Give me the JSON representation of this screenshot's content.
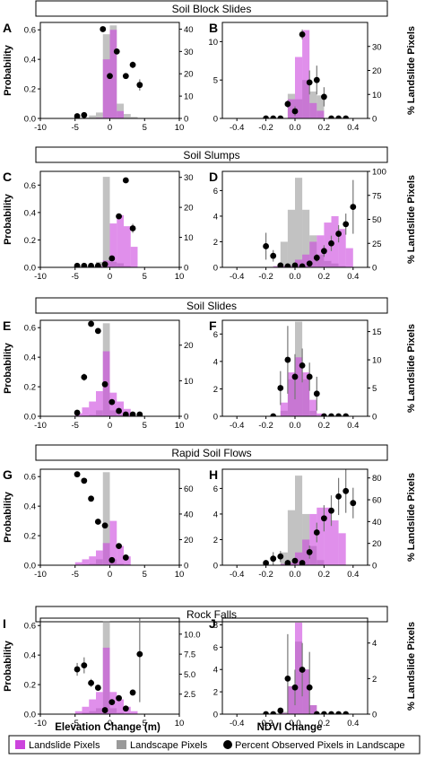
{
  "figure": {
    "left_ylabel": "Probability",
    "right_ylabel": "% Landslide Pixels",
    "xlabel_left": "Elevation Change (m)",
    "xlabel_right": "NDVI Change"
  },
  "colors": {
    "landslide": "#cc44dd",
    "landscape": "#9a9a9a",
    "point": "#000000",
    "errorbar": "#777777"
  },
  "legend": {
    "landslide_label": "Landslide Pixels",
    "landscape_label": "Landscape Pixels",
    "points_label": "Percent Observed Pixels in Landscape"
  },
  "rows": [
    {
      "title": "Soil Block Slides",
      "left_letter": "A",
      "right_letter": "B"
    },
    {
      "title": "Soil Slumps",
      "left_letter": "C",
      "right_letter": "D"
    },
    {
      "title": "Soil Slides",
      "left_letter": "E",
      "right_letter": "F"
    },
    {
      "title": "Rapid Soil Flows",
      "left_letter": "G",
      "right_letter": "H"
    },
    {
      "title": "Rock Falls",
      "left_letter": "I",
      "right_letter": "J"
    }
  ],
  "chart_data": [
    {
      "type": "bar",
      "panel": "A",
      "xlim": [
        -10,
        10
      ],
      "xticks": [
        -10,
        -5,
        0,
        5,
        10
      ],
      "ylim": [
        0,
        0.65
      ],
      "yticks": [
        0,
        0.2,
        0.4,
        0.6
      ],
      "y2lim": [
        0,
        43
      ],
      "y2ticks": [
        0,
        10,
        20,
        30,
        40
      ],
      "y2ticklabels": [
        "0",
        "10",
        "20",
        "30",
        "40"
      ],
      "bins": [
        [
          -4,
          -3,
          0,
          0.005
        ],
        [
          -3,
          -2,
          0,
          0.02
        ],
        [
          -2,
          -1,
          0.005,
          0.04
        ],
        [
          -1,
          0,
          0.4,
          0.57
        ],
        [
          0,
          1,
          0.6,
          0.63
        ],
        [
          1,
          2,
          0.05,
          0.1
        ],
        [
          2,
          3,
          0,
          0.03
        ],
        [
          3,
          4,
          0,
          0.01
        ]
      ],
      "points": [
        [
          -4.7,
          1,
          0
        ],
        [
          -3.7,
          1.5,
          0
        ],
        [
          -1,
          40,
          0
        ],
        [
          0,
          19,
          0
        ],
        [
          1,
          30,
          0
        ],
        [
          2.3,
          19,
          0
        ],
        [
          3.3,
          24,
          1.5
        ],
        [
          4.3,
          15,
          2.5
        ]
      ]
    },
    {
      "type": "bar",
      "panel": "B",
      "xlim": [
        -0.5,
        0.5
      ],
      "xticks": [
        -0.4,
        -0.2,
        0.0,
        0.2,
        0.4
      ],
      "ylim": [
        0,
        12.5
      ],
      "yticks": [
        0,
        5,
        10
      ],
      "y2lim": [
        0,
        40
      ],
      "y2ticks": [
        0,
        10,
        20,
        30
      ],
      "y2ticklabels": [
        "0",
        "10",
        "20",
        "30"
      ],
      "bins": [
        [
          -0.05,
          0,
          2.5,
          3.2
        ],
        [
          0,
          0.05,
          8,
          2.5
        ],
        [
          0.05,
          0.1,
          11.5,
          5
        ],
        [
          0.1,
          0.15,
          2,
          3.5
        ],
        [
          0.15,
          0.2,
          1,
          3
        ]
      ],
      "points": [
        [
          -0.2,
          0,
          0
        ],
        [
          -0.15,
          0,
          0
        ],
        [
          -0.1,
          0,
          0
        ],
        [
          -0.05,
          6,
          1.5
        ],
        [
          0,
          3,
          2
        ],
        [
          0.05,
          35,
          2
        ],
        [
          0.1,
          15,
          5
        ],
        [
          0.15,
          16,
          6
        ],
        [
          0.2,
          9,
          4
        ],
        [
          0.25,
          0,
          0
        ],
        [
          0.3,
          0,
          0
        ],
        [
          0.35,
          0,
          0
        ]
      ]
    },
    {
      "type": "bar",
      "panel": "C",
      "xlim": [
        -10,
        10
      ],
      "xticks": [
        -10,
        -5,
        0,
        5,
        10
      ],
      "ylim": [
        0,
        0.7
      ],
      "yticks": [
        0,
        0.2,
        0.4,
        0.6
      ],
      "y2lim": [
        0,
        32
      ],
      "y2ticks": [
        0,
        10,
        20,
        30
      ],
      "y2ticklabels": [
        "0",
        "10",
        "20",
        "30"
      ],
      "bins": [
        [
          -4,
          -3,
          0,
          0.005
        ],
        [
          -3,
          -2,
          0,
          0.01
        ],
        [
          -2,
          -1,
          0.01,
          0.04
        ],
        [
          -1,
          0,
          0.05,
          0.66
        ],
        [
          0,
          1,
          0.32,
          0.04
        ],
        [
          1,
          2,
          0.38,
          0.03
        ],
        [
          2,
          3,
          0.3,
          0.01
        ],
        [
          3,
          4,
          0.15,
          0
        ]
      ],
      "points": [
        [
          -4.7,
          0.5,
          0
        ],
        [
          -3.7,
          0.5,
          0
        ],
        [
          -2.7,
          0.5,
          0
        ],
        [
          -1.7,
          0.5,
          0
        ],
        [
          -0.7,
          1,
          0
        ],
        [
          0.3,
          3,
          0
        ],
        [
          1.3,
          17,
          0
        ],
        [
          2.3,
          29,
          0
        ],
        [
          3.3,
          13,
          1.5
        ]
      ]
    },
    {
      "type": "bar",
      "panel": "D",
      "xlim": [
        -0.5,
        0.5
      ],
      "xticks": [
        -0.4,
        -0.2,
        0.0,
        0.2,
        0.4
      ],
      "ylim": [
        0,
        7.5
      ],
      "yticks": [
        0,
        2,
        4,
        6
      ],
      "y2lim": [
        0,
        100
      ],
      "y2ticks": [
        0,
        25,
        50,
        75,
        100
      ],
      "y2ticklabels": [
        "0",
        "25",
        "50",
        "75",
        "100"
      ],
      "bins": [
        [
          -0.15,
          -0.1,
          0.1,
          0
        ],
        [
          -0.1,
          -0.05,
          0.1,
          2
        ],
        [
          -0.05,
          0,
          0.1,
          4.5
        ],
        [
          0,
          0.05,
          0.6,
          7
        ],
        [
          0.05,
          0.1,
          1,
          4.5
        ],
        [
          0.1,
          0.15,
          2,
          2.5
        ],
        [
          0.15,
          0.2,
          2.5,
          1
        ],
        [
          0.2,
          0.25,
          3.5,
          0.5
        ],
        [
          0.25,
          0.3,
          4,
          0.3
        ],
        [
          0.3,
          0.35,
          3,
          0.1
        ],
        [
          0.35,
          0.4,
          1.5,
          0
        ]
      ],
      "points": [
        [
          -0.2,
          22,
          14
        ],
        [
          -0.15,
          12,
          6
        ],
        [
          -0.1,
          2,
          3
        ],
        [
          -0.05,
          1,
          0
        ],
        [
          0,
          2,
          0
        ],
        [
          0.05,
          1,
          0
        ],
        [
          0.1,
          4,
          0
        ],
        [
          0.15,
          10,
          4
        ],
        [
          0.2,
          17,
          6
        ],
        [
          0.25,
          25,
          8
        ],
        [
          0.3,
          35,
          9
        ],
        [
          0.35,
          45,
          11
        ],
        [
          0.4,
          63,
          28
        ]
      ]
    },
    {
      "type": "bar",
      "panel": "E",
      "xlim": [
        -10,
        10
      ],
      "xticks": [
        -10,
        -5,
        0,
        5,
        10
      ],
      "ylim": [
        0,
        0.65
      ],
      "yticks": [
        0,
        0.2,
        0.4,
        0.6
      ],
      "y2lim": [
        0,
        27
      ],
      "y2ticks": [
        0,
        10,
        20
      ],
      "y2ticklabels": [
        "0",
        "10",
        "20"
      ],
      "bins": [
        [
          -5,
          -4,
          0.02,
          0
        ],
        [
          -4,
          -3,
          0.06,
          0.005
        ],
        [
          -3,
          -2,
          0.1,
          0.01
        ],
        [
          -2,
          -1,
          0.17,
          0.04
        ],
        [
          -1,
          0,
          0.44,
          0.63
        ],
        [
          0,
          1,
          0.16,
          0.04
        ],
        [
          1,
          2,
          0.1,
          0.01
        ],
        [
          2,
          3,
          0.05,
          0
        ]
      ],
      "points": [
        [
          -4.7,
          1,
          0
        ],
        [
          -3.7,
          11,
          1
        ],
        [
          -2.7,
          26,
          0
        ],
        [
          -1.7,
          24,
          0
        ],
        [
          -0.7,
          9,
          0
        ],
        [
          0.3,
          4,
          0
        ],
        [
          1.3,
          1.5,
          0
        ],
        [
          2.3,
          0.5,
          0
        ],
        [
          3.3,
          0.5,
          0
        ],
        [
          4.3,
          0.5,
          0
        ]
      ]
    },
    {
      "type": "bar",
      "panel": "F",
      "xlim": [
        -0.5,
        0.5
      ],
      "xticks": [
        -0.4,
        -0.2,
        0.0,
        0.2,
        0.4
      ],
      "ylim": [
        0,
        7
      ],
      "yticks": [
        0,
        2,
        4,
        6
      ],
      "y2lim": [
        0,
        17
      ],
      "y2ticks": [
        0,
        5,
        10,
        15
      ],
      "y2ticklabels": [
        "0",
        "5",
        "10",
        "15"
      ],
      "bins": [
        [
          -0.1,
          -0.05,
          1,
          0.4
        ],
        [
          -0.05,
          0,
          3.2,
          2.7
        ],
        [
          0,
          0.05,
          4.3,
          6.9
        ],
        [
          0.05,
          0.1,
          3.2,
          2.7
        ],
        [
          0.1,
          0.15,
          1.2,
          0.4
        ],
        [
          0.15,
          0.2,
          0.2,
          0
        ]
      ],
      "points": [
        [
          -0.15,
          0,
          0
        ],
        [
          -0.1,
          5,
          3
        ],
        [
          -0.05,
          10,
          6
        ],
        [
          0,
          7,
          4
        ],
        [
          0.05,
          9,
          3
        ],
        [
          0.1,
          7,
          2.5
        ],
        [
          0.15,
          4,
          3
        ],
        [
          0.2,
          0,
          0
        ],
        [
          0.25,
          0,
          0
        ],
        [
          0.3,
          0,
          0
        ],
        [
          0.35,
          0,
          0
        ]
      ]
    },
    {
      "type": "bar",
      "panel": "G",
      "xlim": [
        -10,
        10
      ],
      "xticks": [
        -10,
        -5,
        0,
        5,
        10
      ],
      "ylim": [
        0,
        0.65
      ],
      "yticks": [
        0,
        0.2,
        0.4,
        0.6
      ],
      "y2lim": [
        0,
        75
      ],
      "y2ticks": [
        0,
        20,
        40,
        60
      ],
      "y2ticklabels": [
        "0",
        "20",
        "40",
        "60"
      ],
      "bins": [
        [
          -5,
          -4,
          0.02,
          0
        ],
        [
          -4,
          -3,
          0.04,
          0.005
        ],
        [
          -3,
          -2,
          0.06,
          0.01
        ],
        [
          -2,
          -1,
          0.1,
          0.04
        ],
        [
          -1,
          0,
          0.15,
          0.63
        ],
        [
          0,
          1,
          0.3,
          0.04
        ],
        [
          1,
          2,
          0.13,
          0.01
        ],
        [
          2,
          3,
          0.06,
          0.005
        ]
      ],
      "points": [
        [
          -4.7,
          71,
          0
        ],
        [
          -3.7,
          66,
          0
        ],
        [
          -2.7,
          52,
          0
        ],
        [
          -1.7,
          34,
          0
        ],
        [
          -0.7,
          31,
          0
        ],
        [
          0.3,
          4,
          0
        ],
        [
          1.3,
          15,
          0
        ],
        [
          2.3,
          6,
          0
        ]
      ]
    },
    {
      "type": "bar",
      "panel": "H",
      "xlim": [
        -0.5,
        0.5
      ],
      "xticks": [
        -0.4,
        -0.2,
        0.0,
        0.2,
        0.4
      ],
      "ylim": [
        0,
        7.5
      ],
      "yticks": [
        0,
        2,
        4,
        6
      ],
      "y2lim": [
        0,
        88
      ],
      "y2ticks": [
        0,
        20,
        40,
        60,
        80
      ],
      "y2ticklabels": [
        "0",
        "20",
        "40",
        "60",
        "80"
      ],
      "bins": [
        [
          -0.1,
          -0.05,
          0.1,
          1
        ],
        [
          -0.05,
          0,
          0.2,
          4.3
        ],
        [
          0,
          0.05,
          1,
          7
        ],
        [
          0.05,
          0.1,
          2,
          4
        ],
        [
          0.1,
          0.15,
          4,
          1.5
        ],
        [
          0.15,
          0.2,
          4.5,
          0.4
        ],
        [
          0.2,
          0.25,
          4.5,
          0
        ],
        [
          0.25,
          0.3,
          3.5,
          0
        ],
        [
          0.3,
          0.35,
          2.5,
          0
        ]
      ],
      "points": [
        [
          -0.2,
          2,
          0
        ],
        [
          -0.15,
          6,
          6
        ],
        [
          -0.1,
          8,
          5
        ],
        [
          -0.05,
          2,
          3
        ],
        [
          0,
          4,
          2
        ],
        [
          0.05,
          2,
          2
        ],
        [
          0.1,
          12,
          6
        ],
        [
          0.15,
          30,
          9
        ],
        [
          0.2,
          43,
          12
        ],
        [
          0.25,
          50,
          14
        ],
        [
          0.3,
          63,
          17
        ],
        [
          0.35,
          68,
          20
        ],
        [
          0.4,
          57,
          14
        ]
      ]
    },
    {
      "type": "bar",
      "panel": "I",
      "xlim": [
        -10,
        10
      ],
      "xticks": [
        -10,
        -5,
        0,
        5,
        10
      ],
      "ylim": [
        0,
        0.65
      ],
      "yticks": [
        0,
        0.2,
        0.4,
        0.6
      ],
      "y2lim": [
        0,
        12
      ],
      "y2ticks": [
        2.5,
        5,
        7.5,
        10
      ],
      "y2ticklabels": [
        "2.5",
        "5.0",
        "7.5",
        "10.0"
      ],
      "bins": [
        [
          -5,
          -4,
          0.02,
          0
        ],
        [
          -4,
          -3,
          0.05,
          0.01
        ],
        [
          -3,
          -2,
          0.1,
          0.02
        ],
        [
          -2,
          -1,
          0.15,
          0.04
        ],
        [
          -1,
          0,
          0.45,
          0.63
        ],
        [
          0,
          1,
          0.15,
          0.04
        ],
        [
          1,
          2,
          0.1,
          0.01
        ],
        [
          2,
          3,
          0.05,
          0.005
        ],
        [
          3,
          4,
          0.02,
          0
        ]
      ],
      "points": [
        [
          -4.7,
          5.6,
          0.8
        ],
        [
          -3.7,
          6.1,
          1
        ],
        [
          -2.7,
          3.9,
          0.5
        ],
        [
          -1.7,
          3.3,
          0.3
        ],
        [
          -0.7,
          0.5,
          0
        ],
        [
          0.3,
          1.5,
          0
        ],
        [
          1.3,
          2,
          0
        ],
        [
          2.3,
          0.7,
          0
        ],
        [
          3.3,
          2.7,
          0
        ],
        [
          4.3,
          7.5,
          6
        ]
      ]
    },
    {
      "type": "bar",
      "panel": "J",
      "xlim": [
        -0.5,
        0.5
      ],
      "xticks": [
        -0.4,
        -0.2,
        0.0,
        0.2,
        0.4
      ],
      "ylim": [
        0,
        8.6
      ],
      "yticks": [
        0,
        2,
        4,
        6,
        8
      ],
      "y2lim": [
        0,
        5.4
      ],
      "y2ticks": [
        0,
        2,
        4
      ],
      "y2ticklabels": [
        "0",
        "2",
        "4"
      ],
      "bins": [
        [
          -0.1,
          -0.05,
          0.1,
          0.2
        ],
        [
          -0.05,
          0,
          2.5,
          2.5
        ],
        [
          0,
          0.05,
          8.2,
          6.5
        ],
        [
          0.05,
          0.1,
          4,
          4
        ],
        [
          0.1,
          0.15,
          0.8,
          0.8
        ]
      ],
      "points": [
        [
          -0.2,
          0,
          0
        ],
        [
          -0.15,
          0,
          0
        ],
        [
          -0.1,
          0.2,
          0
        ],
        [
          -0.05,
          2,
          2.5
        ],
        [
          0,
          1.5,
          1
        ],
        [
          0.05,
          2.5,
          1.5
        ],
        [
          0.1,
          1.5,
          2
        ],
        [
          0.15,
          0,
          0
        ],
        [
          0.2,
          0,
          0
        ],
        [
          0.25,
          0,
          0
        ],
        [
          0.3,
          0,
          0
        ],
        [
          0.35,
          0,
          0
        ]
      ]
    }
  ]
}
